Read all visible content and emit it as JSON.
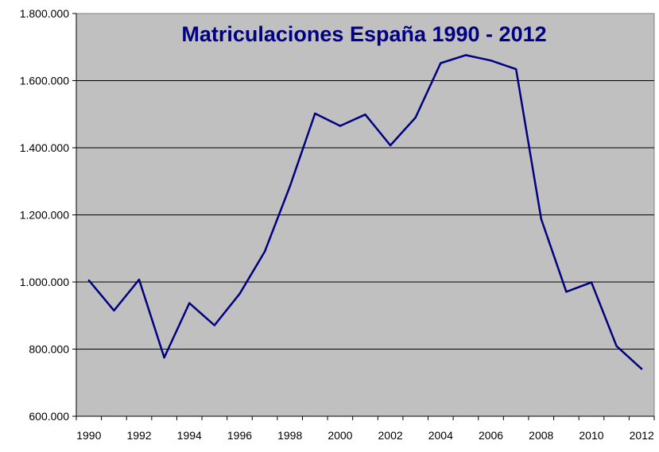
{
  "chart_data": {
    "type": "line",
    "title": "Matriculaciones España 1990 - 2012",
    "xlabel": "",
    "ylabel": "",
    "x": [
      1990,
      1991,
      1992,
      1993,
      1994,
      1995,
      1996,
      1997,
      1998,
      1999,
      2000,
      2001,
      2002,
      2003,
      2004,
      2005,
      2006,
      2007,
      2008,
      2009,
      2010,
      2011,
      2012
    ],
    "series": [
      {
        "values": [
          1005000,
          915000,
          1007000,
          775000,
          937000,
          871000,
          965000,
          1091000,
          1285000,
          1502000,
          1465000,
          1499000,
          1407000,
          1490000,
          1652000,
          1676000,
          1660000,
          1634000,
          1188000,
          971000,
          999000,
          809000,
          741000
        ]
      }
    ],
    "x_ticks": [
      "1990",
      "1992",
      "1994",
      "1996",
      "1998",
      "2000",
      "2002",
      "2004",
      "2006",
      "2008",
      "2010",
      "2012"
    ],
    "y_ticks": [
      "600.000",
      "800.000",
      "1.000.000",
      "1.200.000",
      "1.400.000",
      "1.600.000",
      "1.800.000"
    ],
    "xlim": [
      1989.5,
      2012.5
    ],
    "ylim": [
      600000,
      1800000
    ],
    "grid": "horizontal",
    "legend": "none",
    "colors": {
      "line": "#000080",
      "title": "#000080",
      "plot_background": "#c0c0c0",
      "gridline": "#000000"
    }
  }
}
